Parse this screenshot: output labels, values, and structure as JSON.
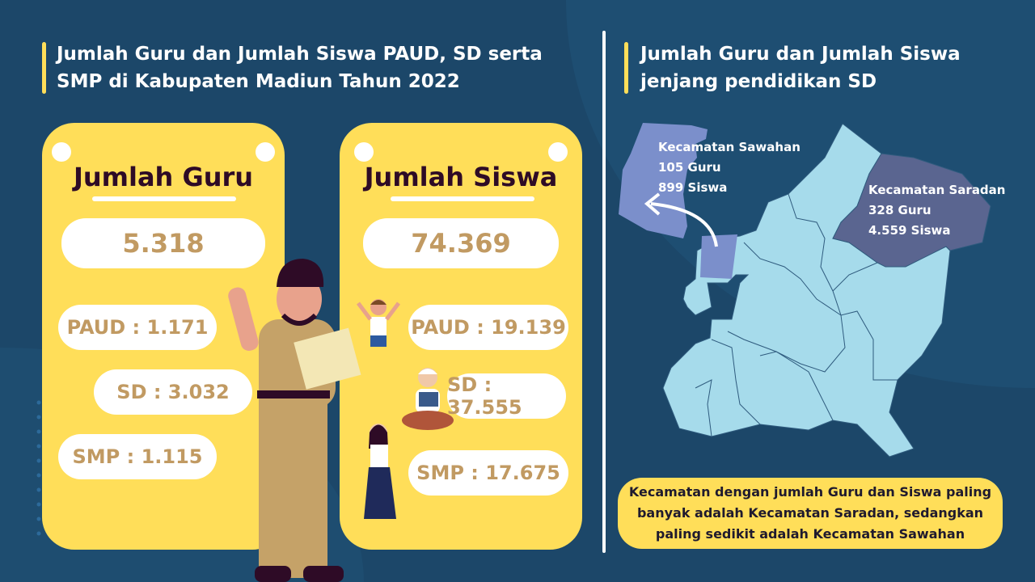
{
  "left_title": "Jumlah Guru dan Jumlah Siswa PAUD, SD serta SMP di Kabupaten Madiun Tahun 2022",
  "right_title": "Jumlah Guru dan Jumlah Siswa jenjang pendidikan SD",
  "guru": {
    "title": "Jumlah Guru",
    "total": "5.318",
    "paud": "PAUD : 1.171",
    "sd": "SD : 3.032",
    "smp": "SMP : 1.115"
  },
  "siswa": {
    "title": "Jumlah Siswa",
    "total": "74.369",
    "paud": "PAUD : 19.139",
    "sd": "SD : 37.555",
    "smp": "SMP : 17.675"
  },
  "map": {
    "sawahan": {
      "name": "Kecamatan Sawahan",
      "guru": "105 Guru",
      "siswa": "899 Siswa",
      "color": "#7b8fcb"
    },
    "saradan": {
      "name": "Kecamatan Saradan",
      "guru": "328 Guru",
      "siswa": "4.559 Siswa",
      "color": "#5a6590"
    },
    "base_color": "#a6dbeb"
  },
  "conclusion": "Kecamatan dengan jumlah Guru dan Siswa paling banyak adalah Kecamatan Saradan, sedangkan paling sedikit adalah Kecamatan Sawahan",
  "colors": {
    "background": "#1c4769",
    "card": "#ffde59",
    "number": "#c19a62",
    "card_title": "#2e0b26"
  }
}
